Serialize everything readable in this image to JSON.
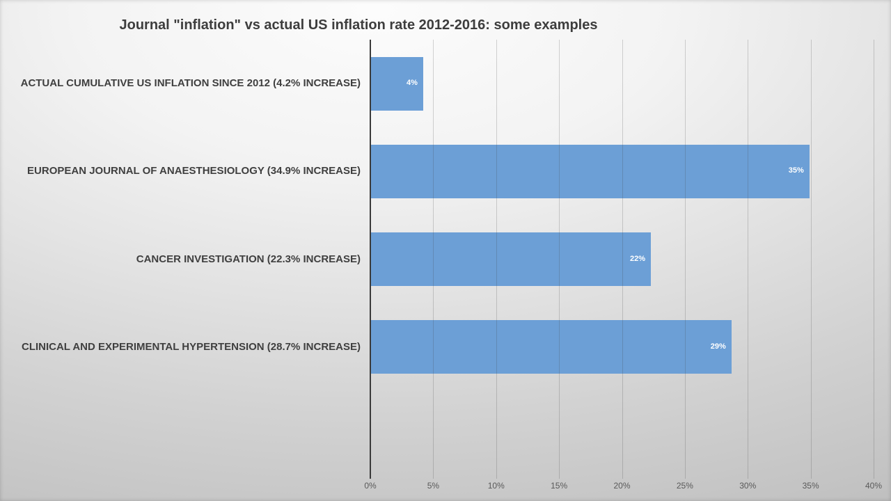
{
  "slide": {
    "background_light": "#fcfcfc",
    "background_dark": "#b6b6b6"
  },
  "chart_data": {
    "type": "bar",
    "orientation": "horizontal",
    "title": "Journal \"inflation\" vs actual US inflation rate 2012-2016: some examples",
    "categories": [
      "ACTUAL CUMULATIVE US INFLATION SINCE 2012 (4.2% INCREASE)",
      "EUROPEAN JOURNAL OF ANAESTHESIOLOGY (34.9% INCREASE)",
      "CANCER INVESTIGATION (22.3% INCREASE)",
      "CLINICAL AND EXPERIMENTAL HYPERTENSION (28.7% INCREASE)"
    ],
    "values": [
      4.2,
      34.9,
      22.3,
      28.7
    ],
    "value_labels": [
      "4%",
      "35%",
      "22%",
      "29%"
    ],
    "value_label_position": "inside-end",
    "xlim": [
      0,
      40
    ],
    "x_tick_step": 5,
    "x_tick_labels": [
      "0%",
      "5%",
      "10%",
      "15%",
      "20%",
      "25%",
      "30%",
      "35%",
      "40%"
    ],
    "grid": true,
    "legend": "none",
    "bar_color": "#6C9FD6",
    "axis_color": "#3a3a3a",
    "gridline_color": "#404040",
    "title_color": "#3d3d3d",
    "category_label_color": "#3f3f3f",
    "tick_label_color": "#595959",
    "value_label_color": "#ffffff"
  }
}
